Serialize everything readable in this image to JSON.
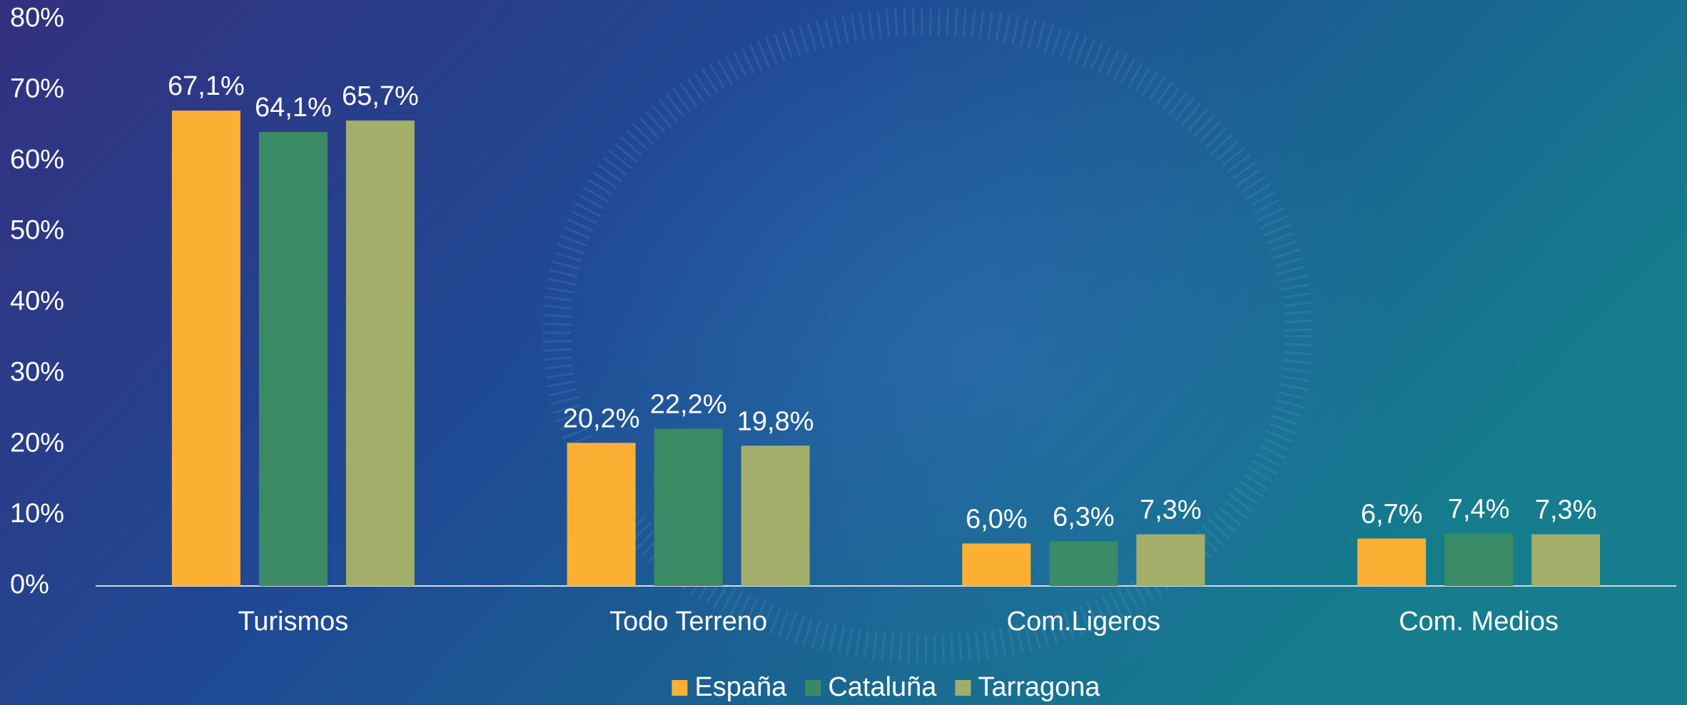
{
  "chart_data": {
    "type": "bar",
    "categories": [
      "Turismos",
      "Todo Terreno",
      "Com.Ligeros",
      "Com. Medios"
    ],
    "series": [
      {
        "name": "España",
        "color": "#fbb034",
        "values": [
          67.1,
          20.2,
          6.0,
          6.7
        ],
        "value_labels": [
          "67,1%",
          "20,2%",
          "6,0%",
          "6,7%"
        ]
      },
      {
        "name": "Cataluña",
        "color": "#3a8a66",
        "values": [
          64.1,
          22.2,
          6.3,
          7.4
        ],
        "value_labels": [
          "64,1%",
          "22,2%",
          "6,3%",
          "7,4%"
        ]
      },
      {
        "name": "Tarragona",
        "color": "#a3ae6a",
        "values": [
          65.7,
          19.8,
          7.3,
          7.3
        ],
        "value_labels": [
          "65,7%",
          "19,8%",
          "7,3%",
          "7,3%"
        ]
      }
    ],
    "ylim": [
      0,
      80
    ],
    "yticks": [
      {
        "value": 0,
        "label": "0%"
      },
      {
        "value": 10,
        "label": "10%"
      },
      {
        "value": 20,
        "label": "20%"
      },
      {
        "value": 30,
        "label": "30%"
      },
      {
        "value": 40,
        "label": "40%"
      },
      {
        "value": 50,
        "label": "50%"
      },
      {
        "value": 60,
        "label": "60%"
      },
      {
        "value": 70,
        "label": "70%"
      },
      {
        "value": 80,
        "label": "80%"
      }
    ],
    "grid": false,
    "legend": "bottom"
  }
}
